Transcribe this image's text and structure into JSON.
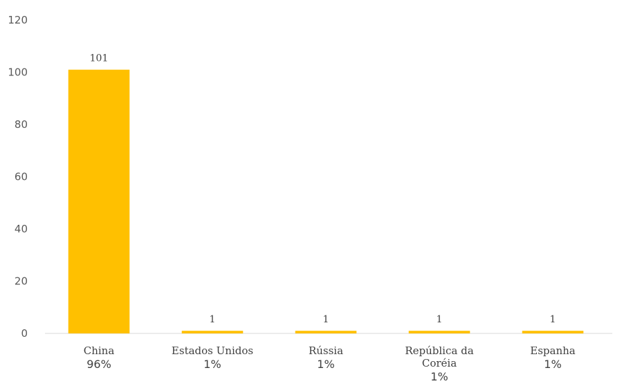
{
  "chart_data": {
    "type": "bar",
    "title": "",
    "xlabel": "",
    "ylabel": "",
    "ylim": [
      0,
      120
    ],
    "yticks": [
      0,
      20,
      40,
      60,
      80,
      100,
      120
    ],
    "grid": false,
    "legend": "none",
    "bar_color": "#FFC000",
    "categories": [
      {
        "lines": [
          "China"
        ],
        "percent": "96%"
      },
      {
        "lines": [
          "Estados Unidos"
        ],
        "percent": "1%"
      },
      {
        "lines": [
          "Rússia"
        ],
        "percent": "1%"
      },
      {
        "lines": [
          "República da",
          "Coréia"
        ],
        "percent": "1%"
      },
      {
        "lines": [
          "Espanha"
        ],
        "percent": "1%"
      }
    ],
    "values": [
      101,
      1,
      1,
      1,
      1
    ]
  }
}
